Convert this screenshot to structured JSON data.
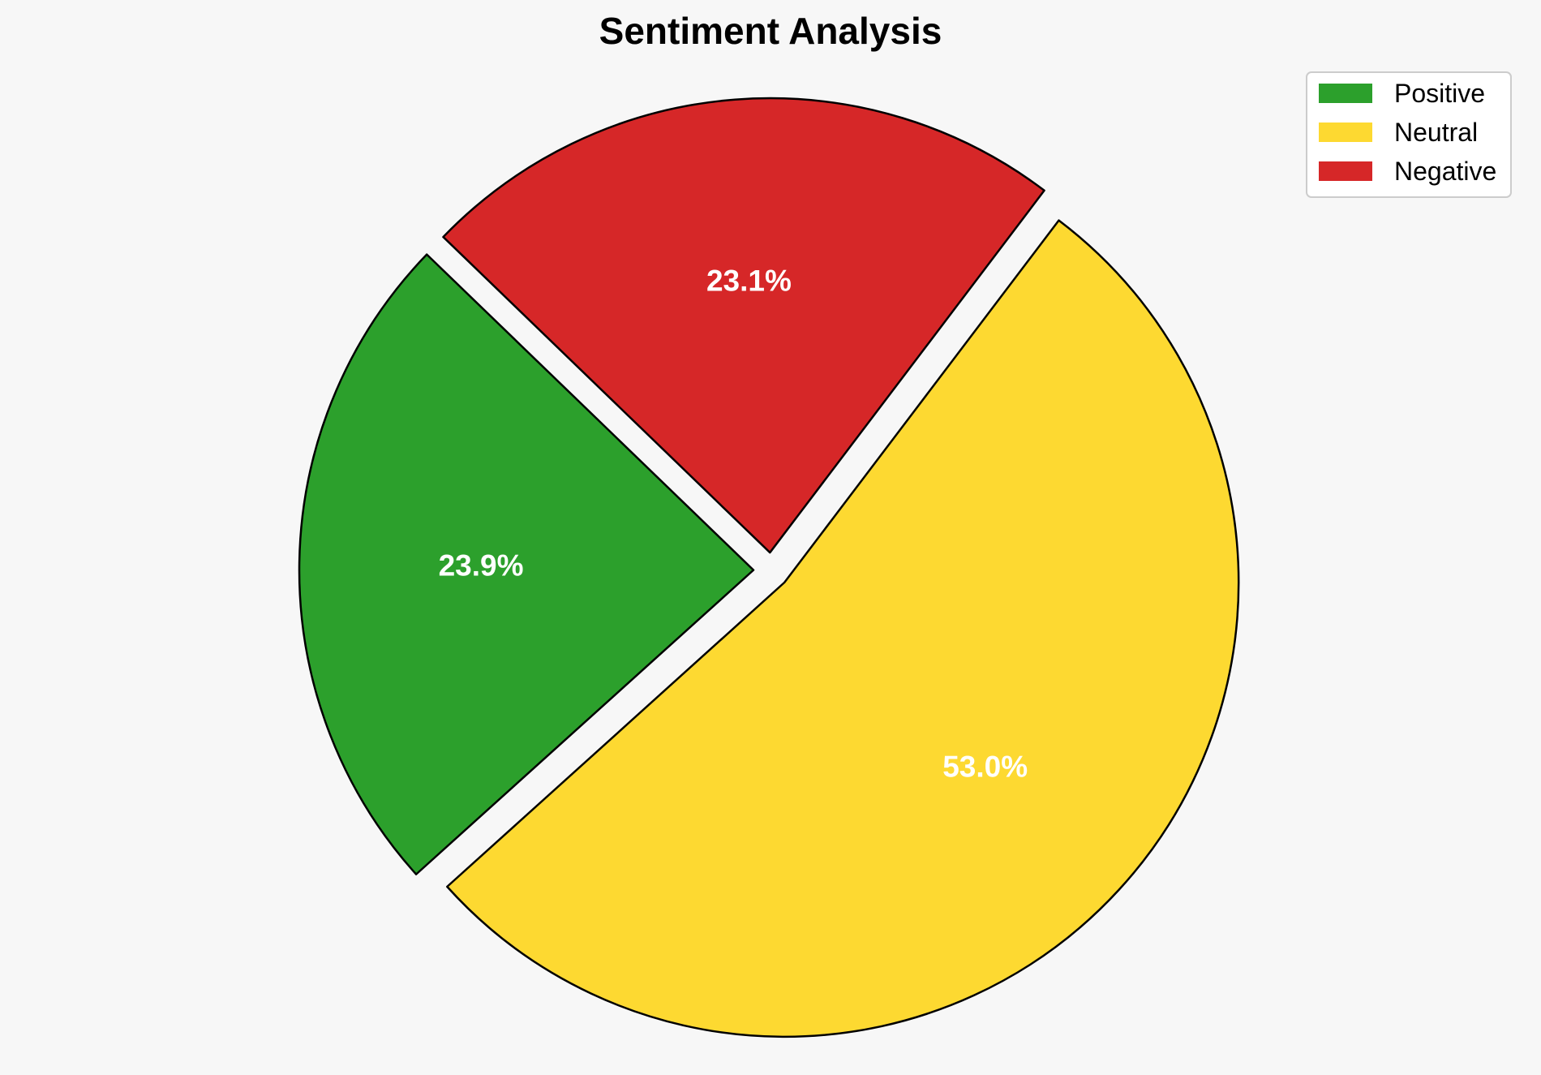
{
  "chart_data": {
    "type": "pie",
    "title": "Sentiment Analysis",
    "slices": [
      {
        "label": "Positive",
        "value": 23.9,
        "display": "23.9%",
        "color": "#2ca02c",
        "exploded": true
      },
      {
        "label": "Neutral",
        "value": 53.0,
        "display": "53.0%",
        "color": "#fdd931",
        "exploded": true
      },
      {
        "label": "Negative",
        "value": 23.1,
        "display": "23.1%",
        "color": "#d62728",
        "exploded": true
      }
    ],
    "legend_placement": "top-right",
    "edge_color": "#000000"
  }
}
